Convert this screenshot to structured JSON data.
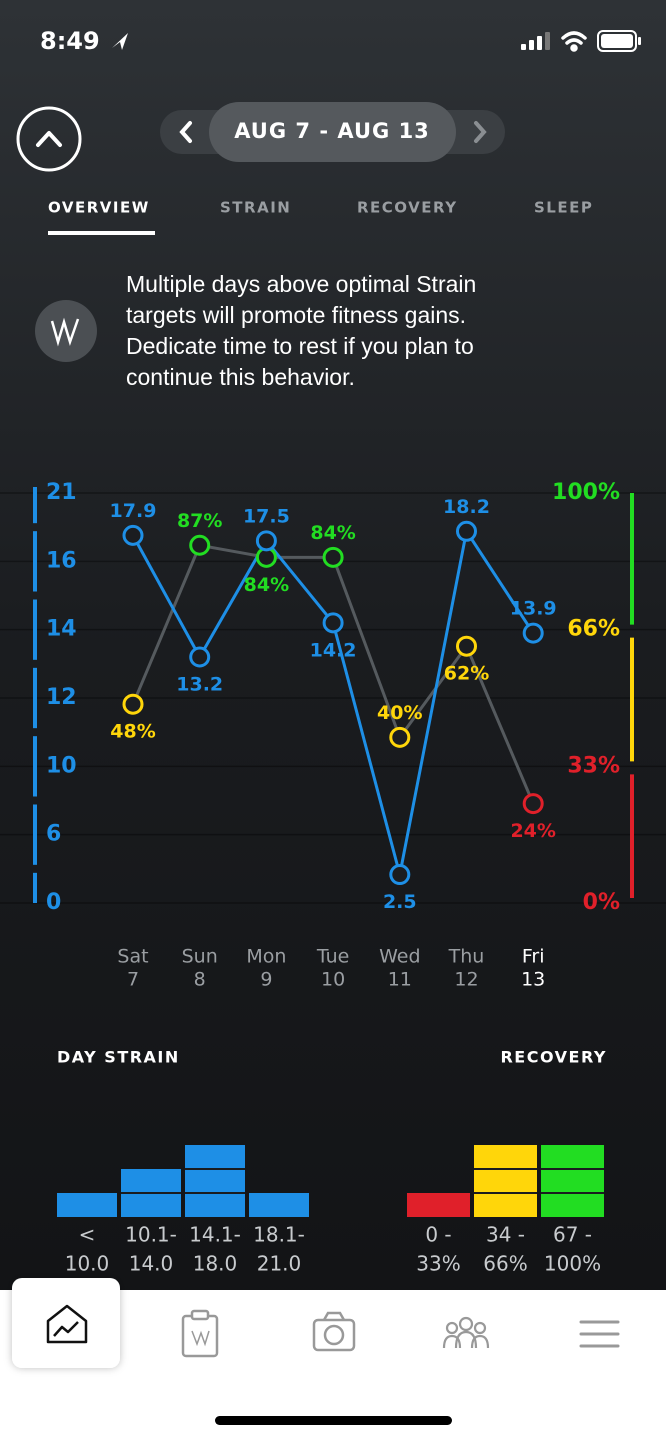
{
  "status_bar": {
    "time": "8:49"
  },
  "header": {
    "date_range": "AUG 7 - AUG 13"
  },
  "tabs": [
    "OVERVIEW",
    "STRAIN",
    "RECOVERY",
    "SLEEP"
  ],
  "insight": {
    "lines": [
      "Multiple days above optimal Strain",
      "targets will promote fitness gains.",
      "Dedicate time to rest if you plan to",
      "continue this behavior."
    ]
  },
  "chart_data": [
    {
      "type": "line",
      "categories": [
        "Sat",
        "Sun",
        "Mon",
        "Tue",
        "Wed",
        "Thu",
        "Fri"
      ],
      "dates": [
        "7",
        "8",
        "9",
        "10",
        "11",
        "12",
        "13"
      ],
      "ylim": [
        0,
        21
      ],
      "yticks": [
        21,
        16,
        14,
        12,
        10,
        6,
        0
      ],
      "y2lim": [
        0,
        100
      ],
      "y2ticks": [
        {
          "value": 100,
          "label": "100%"
        },
        {
          "value": 66,
          "label": "66%"
        },
        {
          "value": 33,
          "label": "33%"
        },
        {
          "value": 0,
          "label": "0%"
        }
      ],
      "y2tick_colors": [
        "#22dd22",
        "#ffd60a",
        "#e0202a",
        "#e0202a"
      ],
      "series": [
        {
          "color": "#1e8fe6",
          "values": [
            17.9,
            13.2,
            17.5,
            14.2,
            2.5,
            18.2,
            13.9
          ]
        },
        {
          "axis": "y2",
          "color": "#555a5e",
          "point_colors": [
            "#ffd60a",
            "#22dd22",
            "#22dd22",
            "#22dd22",
            "#ffd60a",
            "#ffd60a",
            "#e0202a"
          ],
          "values": [
            48,
            87,
            84,
            84,
            40,
            62,
            24
          ],
          "value_labels": [
            "48%",
            "87%",
            "84%",
            "84%",
            "40%",
            "62%",
            "24%"
          ]
        }
      ]
    },
    {
      "type": "bar",
      "title": "DAY STRAIN",
      "categories": [
        [
          "<",
          "10.0"
        ],
        [
          "10.1-",
          "14.0"
        ],
        [
          "14.1-",
          "18.0"
        ],
        [
          "18.1-",
          "21.0"
        ]
      ],
      "values": [
        1,
        2,
        3,
        1
      ],
      "colors": [
        "#1e8fe6",
        "#1e8fe6",
        "#1e8fe6",
        "#1e8fe6"
      ]
    },
    {
      "type": "bar",
      "title": "RECOVERY",
      "categories": [
        [
          "0 -",
          "33%"
        ],
        [
          "34 -",
          "66%"
        ],
        [
          "67 -",
          "100%"
        ]
      ],
      "values": [
        1,
        3,
        3
      ],
      "colors": [
        "#e0202a",
        "#ffd60a",
        "#22dd22"
      ]
    }
  ]
}
